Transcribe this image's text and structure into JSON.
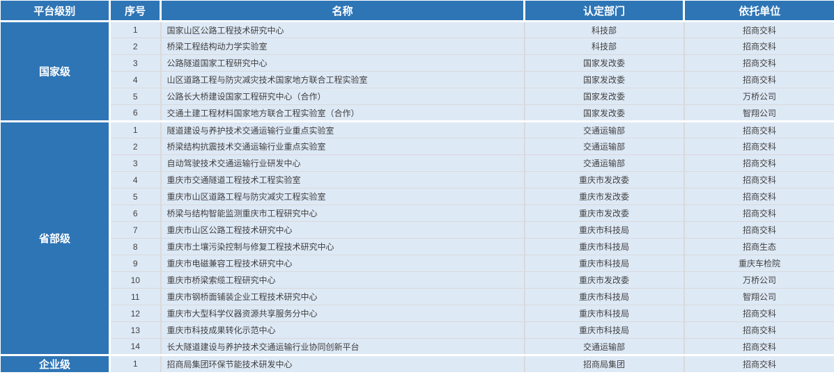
{
  "colors": {
    "header_bg": "#2E75B6",
    "row_bg": "#DEE9F6",
    "grid_line": "#D9D9D9",
    "separator": "#FFFFFF",
    "header_text": "#FFFFFF",
    "body_text": "#404040"
  },
  "table": {
    "headers": [
      {
        "label": "平台级别"
      },
      {
        "label": "序号"
      },
      {
        "label": "名称"
      },
      {
        "label": "认定部门"
      },
      {
        "label": "依托单位"
      }
    ],
    "groups": [
      {
        "level": "国家级",
        "rows": [
          {
            "no": "1",
            "name": "国家山区公路工程技术研究中心",
            "dept": "科技部",
            "unit": "招商交科"
          },
          {
            "no": "2",
            "name": "桥梁工程结构动力学实验室",
            "dept": "科技部",
            "unit": "招商交科"
          },
          {
            "no": "3",
            "name": "公路隧道国家工程研究中心",
            "dept": "国家发改委",
            "unit": "招商交科"
          },
          {
            "no": "4",
            "name": "山区道路工程与防灾减灾技术国家地方联合工程实验室",
            "dept": "国家发改委",
            "unit": "招商交科"
          },
          {
            "no": "5",
            "name": "公路长大桥建设国家工程研究中心（合作）",
            "dept": "国家发改委",
            "unit": "万桥公司"
          },
          {
            "no": "6",
            "name": "交通土建工程材料国家地方联合工程实验室（合作）",
            "dept": "国家发改委",
            "unit": "智翔公司"
          }
        ]
      },
      {
        "level": "省部级",
        "rows": [
          {
            "no": "1",
            "name": "隧道建设与养护技术交通运输行业重点实验室",
            "dept": "交通运输部",
            "unit": "招商交科"
          },
          {
            "no": "2",
            "name": "桥梁结构抗震技术交通运输行业重点实验室",
            "dept": "交通运输部",
            "unit": "招商交科"
          },
          {
            "no": "3",
            "name": "自动驾驶技术交通运输行业研发中心",
            "dept": "交通运输部",
            "unit": "招商交科"
          },
          {
            "no": "4",
            "name": "重庆市交通隧道工程技术工程实验室",
            "dept": "重庆市发改委",
            "unit": "招商交科"
          },
          {
            "no": "5",
            "name": "重庆市山区道路工程与防灾减灾工程实验室",
            "dept": "重庆市发改委",
            "unit": "招商交科"
          },
          {
            "no": "6",
            "name": "桥梁与结构智能监测重庆市工程研究中心",
            "dept": "重庆市发改委",
            "unit": "招商交科"
          },
          {
            "no": "7",
            "name": "重庆市山区公路工程技术研究中心",
            "dept": "重庆市科技局",
            "unit": "招商交科"
          },
          {
            "no": "8",
            "name": "重庆市土壤污染控制与修复工程技术研究中心",
            "dept": "重庆市科技局",
            "unit": "招商生态"
          },
          {
            "no": "9",
            "name": "重庆市电磁兼容工程技术研究中心",
            "dept": "重庆市科技局",
            "unit": "重庆车检院"
          },
          {
            "no": "10",
            "name": "重庆市桥梁索缆工程研究中心",
            "dept": "重庆市发改委",
            "unit": "万桥公司"
          },
          {
            "no": "11",
            "name": "重庆市钢桥面铺装企业工程技术研究中心",
            "dept": "重庆市科技局",
            "unit": "智翔公司"
          },
          {
            "no": "12",
            "name": "重庆市大型科学仪器资源共享服务分中心",
            "dept": "重庆市科技局",
            "unit": "招商交科"
          },
          {
            "no": "13",
            "name": "重庆市科技成果转化示范中心",
            "dept": "重庆市科技局",
            "unit": "招商交科"
          },
          {
            "no": "14",
            "name": "长大隧道建设与养护技术交通运输行业协同创新平台",
            "dept": "交通运输部",
            "unit": "招商交科"
          }
        ]
      },
      {
        "level": "企业级",
        "rows": [
          {
            "no": "1",
            "name": "招商局集团环保节能技术研发中心",
            "dept": "招商局集团",
            "unit": "招商交科"
          }
        ]
      }
    ]
  }
}
